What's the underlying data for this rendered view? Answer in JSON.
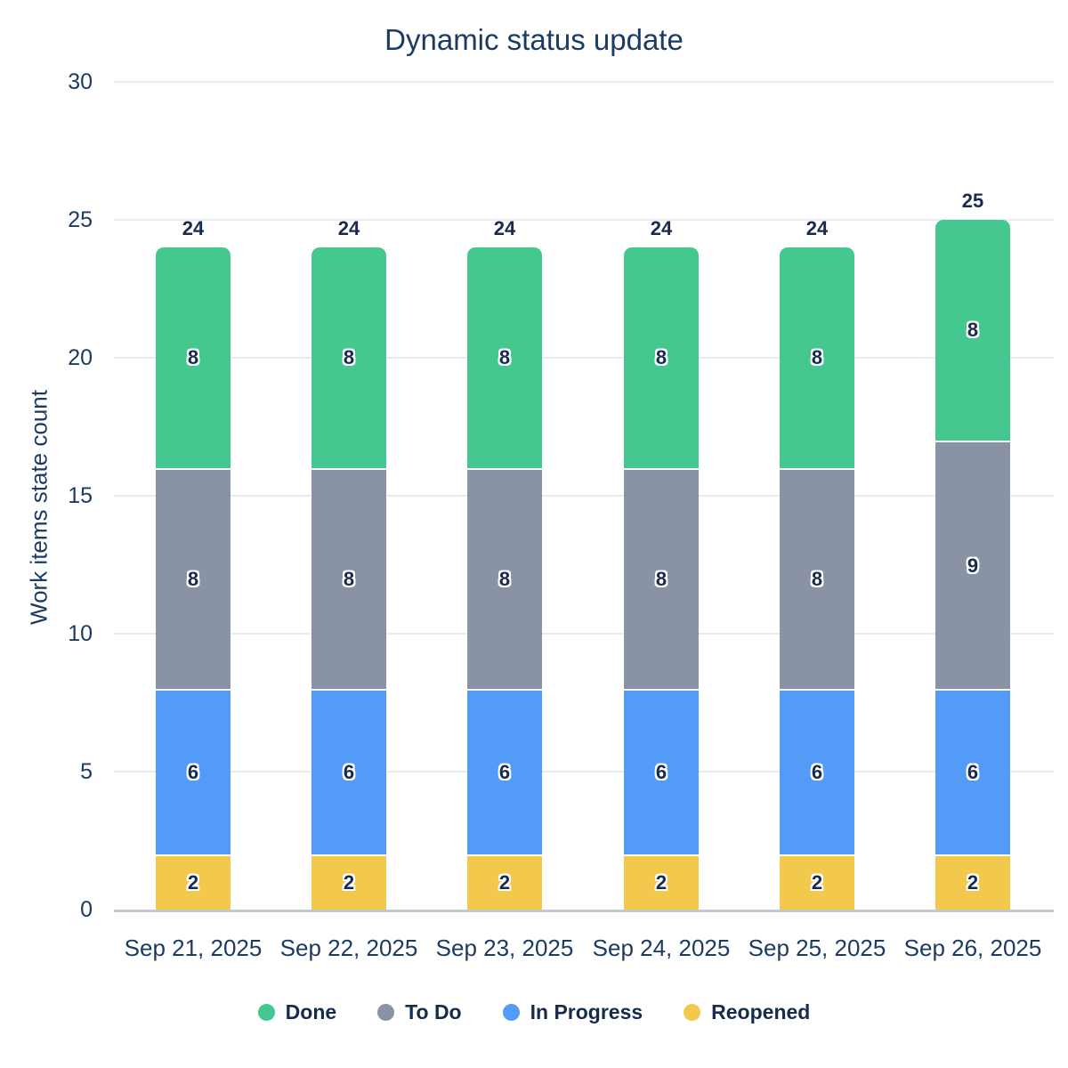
{
  "title": "Dynamic status update",
  "chart_data": {
    "type": "bar",
    "stacked": true,
    "title": "Dynamic status update",
    "xlabel": "",
    "ylabel": "Work items state count",
    "ylim": [
      0,
      30
    ],
    "yticks": [
      0,
      5,
      10,
      15,
      20,
      25,
      30
    ],
    "grid": "horizontal",
    "legend_position": "bottom",
    "categories": [
      "Sep 21, 2025",
      "Sep 22, 2025",
      "Sep 23, 2025",
      "Sep 24, 2025",
      "Sep 25, 2025",
      "Sep 26, 2025"
    ],
    "series": [
      {
        "name": "Done",
        "color": "#45C88F",
        "values": [
          8,
          8,
          8,
          8,
          8,
          8
        ]
      },
      {
        "name": "To Do",
        "color": "#8A93A6",
        "values": [
          8,
          8,
          8,
          8,
          8,
          9
        ]
      },
      {
        "name": "In Progress",
        "color": "#549BF7",
        "values": [
          6,
          6,
          6,
          6,
          6,
          6
        ]
      },
      {
        "name": "Reopened",
        "color": "#F2C94C",
        "values": [
          2,
          2,
          2,
          2,
          2,
          2
        ]
      }
    ],
    "totals": [
      24,
      24,
      24,
      24,
      24,
      25
    ]
  },
  "colors": {
    "background": "#FFFFFF",
    "text_navy": "#172B4D",
    "axis_text": "#1C3B63",
    "gridline": "#E9EBF0",
    "baseline": "#C2C8D2",
    "label_halo": "#FFFFFF"
  }
}
